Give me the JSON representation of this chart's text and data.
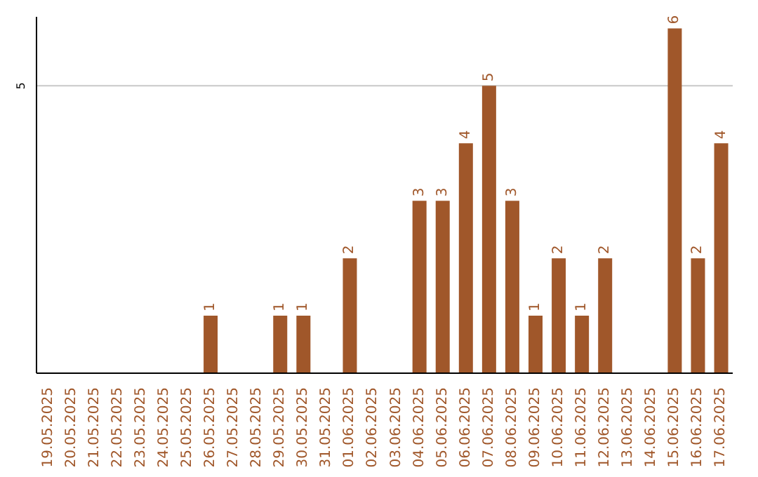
{
  "chart_data": {
    "type": "bar",
    "categories": [
      "19.05.2025",
      "20.05.2025",
      "21.05.2025",
      "22.05.2025",
      "23.05.2025",
      "24.05.2025",
      "25.05.2025",
      "26.05.2025",
      "27.05.2025",
      "28.05.2025",
      "29.05.2025",
      "30.05.2025",
      "31.05.2025",
      "01.06.2025",
      "02.06.2025",
      "03.06.2025",
      "04.06.2025",
      "05.06.2025",
      "06.06.2025",
      "07.06.2025",
      "08.06.2025",
      "09.06.2025",
      "10.06.2025",
      "11.06.2025",
      "12.06.2025",
      "13.06.2025",
      "14.06.2025",
      "15.06.2025",
      "16.06.2025",
      "17.06.2025"
    ],
    "values": [
      0,
      0,
      0,
      0,
      0,
      0,
      0,
      1,
      0,
      0,
      1,
      1,
      0,
      2,
      0,
      0,
      3,
      3,
      4,
      5,
      3,
      1,
      2,
      1,
      2,
      0,
      0,
      6,
      2,
      4
    ],
    "value_labels": [
      null,
      null,
      null,
      null,
      null,
      null,
      null,
      "1",
      null,
      null,
      "1",
      "1",
      null,
      "2",
      null,
      null,
      "3",
      "3",
      "4",
      "5",
      "3",
      "1",
      "2",
      "1",
      "2",
      null,
      null,
      "6",
      "2",
      "4"
    ],
    "color": "#a0572a",
    "ylim": [
      0,
      6.2
    ],
    "yticks": [
      5
    ],
    "grid": "y"
  }
}
